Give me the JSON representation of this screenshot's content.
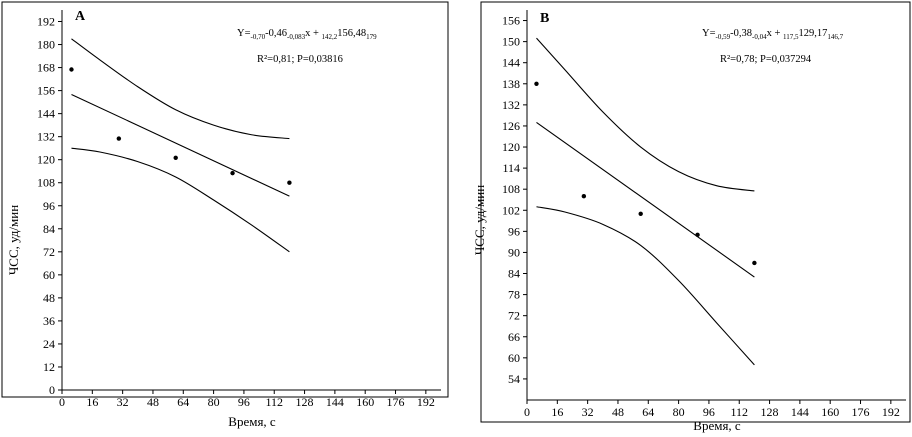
{
  "chart_data": [
    {
      "type": "scatter",
      "panel_label": "A",
      "equation_parts": [
        {
          "t": "Y=",
          "sub": false
        },
        {
          "t": "-0,70",
          "sub": true
        },
        {
          "t": "-0,46",
          "sub": false
        },
        {
          "t": "-0,083",
          "sub": true
        },
        {
          "t": "x  + ",
          "sub": false
        },
        {
          "t": "142,2",
          "sub": true
        },
        {
          "t": "156,48",
          "sub": false
        },
        {
          "t": "179",
          "sub": true
        }
      ],
      "stats_text": "R²=0,81; P=0,03816",
      "xlabel": "Время, с",
      "ylabel": "ЧСС, уд/мин",
      "x_ticks": [
        0,
        16,
        32,
        48,
        64,
        80,
        96,
        112,
        128,
        144,
        160,
        176,
        192
      ],
      "y_ticks": [
        0,
        12,
        24,
        36,
        48,
        60,
        72,
        84,
        96,
        108,
        120,
        132,
        144,
        156,
        168,
        180,
        192
      ],
      "xlim": [
        0,
        200
      ],
      "ylim": [
        0,
        198
      ],
      "points": [
        {
          "x": 5,
          "y": 167
        },
        {
          "x": 30,
          "y": 131
        },
        {
          "x": 60,
          "y": 121
        },
        {
          "x": 90,
          "y": 113
        },
        {
          "x": 120,
          "y": 108
        }
      ],
      "fit_line": [
        [
          5,
          154
        ],
        [
          120,
          101
        ]
      ],
      "upper_ci": [
        [
          5,
          183
        ],
        [
          20,
          172
        ],
        [
          40,
          158
        ],
        [
          60,
          146
        ],
        [
          80,
          138
        ],
        [
          100,
          133
        ],
        [
          120,
          131
        ]
      ],
      "lower_ci": [
        [
          5,
          126
        ],
        [
          20,
          124
        ],
        [
          40,
          119
        ],
        [
          60,
          111
        ],
        [
          80,
          99
        ],
        [
          100,
          86
        ],
        [
          120,
          72
        ]
      ]
    },
    {
      "type": "scatter",
      "panel_label": "B",
      "equation_parts": [
        {
          "t": "Y=",
          "sub": false
        },
        {
          "t": "-0,59",
          "sub": true
        },
        {
          "t": "-0,38",
          "sub": false
        },
        {
          "t": "-0,04",
          "sub": true
        },
        {
          "t": "x  + ",
          "sub": false
        },
        {
          "t": "117,5",
          "sub": true
        },
        {
          "t": "129,17",
          "sub": false
        },
        {
          "t": "146,7",
          "sub": true
        }
      ],
      "stats_text": "R²=0,78; P=0,037294",
      "xlabel": "Время, с",
      "ylabel": "ЧСС, уд/мин",
      "x_ticks": [
        0,
        16,
        32,
        48,
        64,
        80,
        96,
        112,
        128,
        144,
        160,
        176,
        192
      ],
      "y_ticks": [
        54,
        60,
        66,
        72,
        78,
        84,
        90,
        96,
        102,
        108,
        114,
        120,
        126,
        132,
        138,
        144,
        150,
        156
      ],
      "xlim": [
        0,
        200
      ],
      "ylim": [
        48,
        159
      ],
      "points": [
        {
          "x": 5,
          "y": 138
        },
        {
          "x": 30,
          "y": 106
        },
        {
          "x": 60,
          "y": 101
        },
        {
          "x": 90,
          "y": 95
        },
        {
          "x": 120,
          "y": 87
        }
      ],
      "fit_line": [
        [
          5,
          127
        ],
        [
          120,
          83
        ]
      ],
      "upper_ci": [
        [
          5,
          151
        ],
        [
          20,
          142
        ],
        [
          40,
          130
        ],
        [
          60,
          120
        ],
        [
          80,
          113
        ],
        [
          100,
          109
        ],
        [
          120,
          107.5
        ]
      ],
      "lower_ci": [
        [
          5,
          103
        ],
        [
          20,
          101.5
        ],
        [
          40,
          98
        ],
        [
          60,
          92
        ],
        [
          80,
          82
        ],
        [
          100,
          70
        ],
        [
          120,
          58
        ]
      ]
    }
  ]
}
